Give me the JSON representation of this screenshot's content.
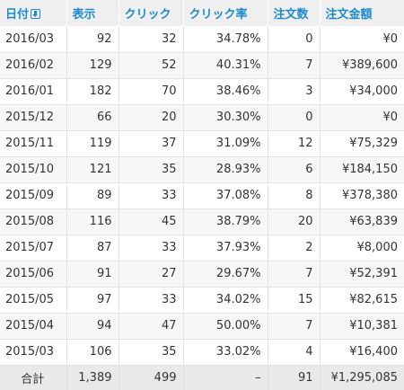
{
  "table": {
    "headers": {
      "date": "日付",
      "views": "表示",
      "clicks": "クリック",
      "ctr": "クリック率",
      "orders": "注文数",
      "amount": "注文金額"
    },
    "sort_icon": "sort-descending-icon",
    "rows": [
      {
        "date": "2016/03",
        "views": "92",
        "clicks": "32",
        "ctr": "34.78%",
        "orders": "0",
        "amount": "¥0"
      },
      {
        "date": "2016/02",
        "views": "129",
        "clicks": "52",
        "ctr": "40.31%",
        "orders": "7",
        "amount": "¥389,600"
      },
      {
        "date": "2016/01",
        "views": "182",
        "clicks": "70",
        "ctr": "38.46%",
        "orders": "3",
        "amount": "¥34,000"
      },
      {
        "date": "2015/12",
        "views": "66",
        "clicks": "20",
        "ctr": "30.30%",
        "orders": "0",
        "amount": "¥0"
      },
      {
        "date": "2015/11",
        "views": "119",
        "clicks": "37",
        "ctr": "31.09%",
        "orders": "12",
        "amount": "¥75,329"
      },
      {
        "date": "2015/10",
        "views": "121",
        "clicks": "35",
        "ctr": "28.93%",
        "orders": "6",
        "amount": "¥184,150"
      },
      {
        "date": "2015/09",
        "views": "89",
        "clicks": "33",
        "ctr": "37.08%",
        "orders": "8",
        "amount": "¥378,380"
      },
      {
        "date": "2015/08",
        "views": "116",
        "clicks": "45",
        "ctr": "38.79%",
        "orders": "20",
        "amount": "¥63,839"
      },
      {
        "date": "2015/07",
        "views": "87",
        "clicks": "33",
        "ctr": "37.93%",
        "orders": "2",
        "amount": "¥8,000"
      },
      {
        "date": "2015/06",
        "views": "91",
        "clicks": "27",
        "ctr": "29.67%",
        "orders": "7",
        "amount": "¥52,391"
      },
      {
        "date": "2015/05",
        "views": "97",
        "clicks": "33",
        "ctr": "34.02%",
        "orders": "15",
        "amount": "¥82,615"
      },
      {
        "date": "2015/04",
        "views": "94",
        "clicks": "47",
        "ctr": "50.00%",
        "orders": "7",
        "amount": "¥10,381"
      },
      {
        "date": "2015/03",
        "views": "106",
        "clicks": "35",
        "ctr": "33.02%",
        "orders": "4",
        "amount": "¥16,400"
      }
    ],
    "total": {
      "label": "合計",
      "views": "1,389",
      "clicks": "499",
      "ctr": "–",
      "orders": "91",
      "amount": "¥1,295,085"
    }
  },
  "colors": {
    "header_text": "#1c8ad0",
    "header_bg": "#efefef",
    "alt_row_bg": "#f7f7f7",
    "total_bg": "#e9e9e9"
  }
}
